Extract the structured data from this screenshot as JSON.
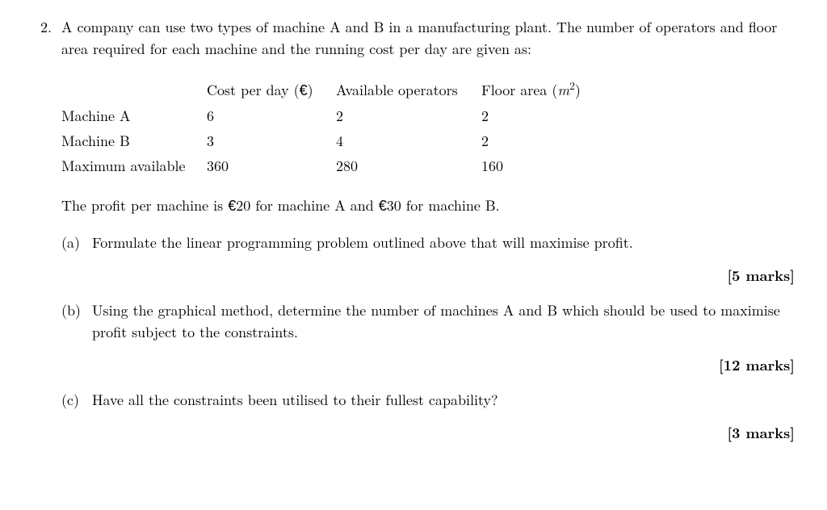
{
  "problem": {
    "number": "2.",
    "intro": "A company can use two types of machine A and B in a manufacturing plant. The number of operators and floor area required for each machine and the running cost per day are given as:"
  },
  "table": {
    "header": {
      "label": "",
      "cost_prefix": "Cost per day (",
      "cost_symbol": "€",
      "cost_suffix": ")",
      "operators": "Available operators",
      "area_prefix": "Floor area (",
      "area_unit_base": "m",
      "area_unit_exp": "2",
      "area_suffix": ")"
    },
    "rows": [
      {
        "label": "Machine A",
        "cost": "6",
        "operators": "2",
        "area": "2"
      },
      {
        "label": "Machine B",
        "cost": "3",
        "operators": "4",
        "area": "2"
      },
      {
        "label": "Maximum available",
        "cost": "360",
        "operators": "280",
        "area": "160"
      }
    ]
  },
  "profit": {
    "prefix": "The profit per machine is ",
    "euro1": "€",
    "amount1": "20 for machine A and ",
    "euro2": "€",
    "amount2": "30 for machine B."
  },
  "subparts": {
    "a": {
      "label": "(a)",
      "text": "Formulate the linear programming problem outlined above that will maximise profit.",
      "marks": "[5 marks]"
    },
    "b": {
      "label": "(b)",
      "text": "Using the graphical method, determine the number of machines A and B which should be used to maximise profit subject to the constraints.",
      "marks": "[12 marks]"
    },
    "c": {
      "label": "(c)",
      "text": "Have all the constraints been utilised to their fullest capability?",
      "marks": "[3 marks]"
    }
  }
}
